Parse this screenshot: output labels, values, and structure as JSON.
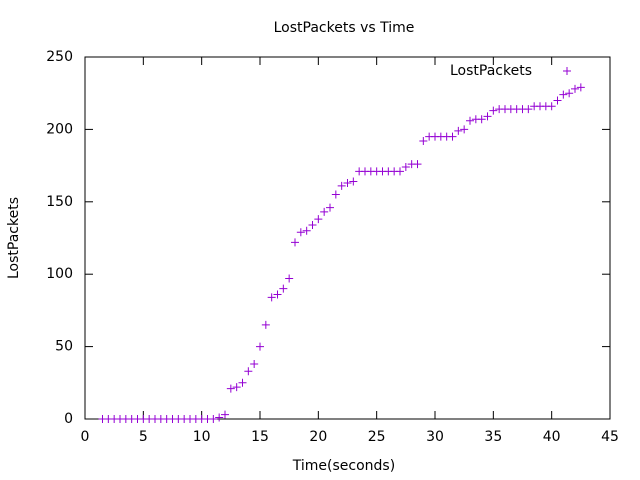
{
  "chart_data": {
    "type": "scatter",
    "title": "LostPackets vs Time",
    "x_label": "Time(seconds)",
    "y_label": "LostPackets",
    "x": [
      1.5,
      2,
      2.5,
      3,
      3.5,
      4,
      4.5,
      5,
      5.5,
      6,
      6.5,
      7,
      7.5,
      8,
      8.5,
      9,
      9.5,
      10,
      10.5,
      11,
      11.5,
      12,
      12.5,
      13,
      13.5,
      14,
      14.5,
      15,
      15.5,
      16,
      16.5,
      17,
      17.5,
      18,
      18.5,
      19,
      19.5,
      20,
      20.5,
      21,
      21.5,
      22,
      22.5,
      23,
      23.5,
      24,
      24.5,
      25,
      25.5,
      26,
      26.5,
      27,
      27.5,
      28,
      28.5,
      29,
      29.5,
      30,
      30.5,
      31,
      31.5,
      32,
      32.5,
      33,
      33.5,
      34,
      34.5,
      35,
      35.5,
      36,
      36.5,
      37,
      37.5,
      38,
      38.5,
      39,
      39.5,
      40,
      40.5,
      41,
      41.5,
      42,
      42.5
    ],
    "series": [
      {
        "name": "LostPackets",
        "color": "#9400d3",
        "values": [
          0,
          0,
          0,
          0,
          0,
          0,
          0,
          0,
          0,
          0,
          0,
          0,
          0,
          0,
          0,
          0,
          0,
          0,
          0,
          0,
          1,
          3,
          21,
          22,
          25,
          33,
          38,
          50,
          65,
          84,
          86,
          90,
          97,
          122,
          129,
          130,
          134,
          138,
          143,
          146,
          155,
          161,
          163,
          164,
          171,
          171,
          171,
          171,
          171,
          171,
          171,
          171,
          174,
          176,
          176,
          192,
          195,
          195,
          195,
          195,
          195,
          199,
          200,
          206,
          207,
          207,
          209,
          213,
          214,
          214,
          214,
          214,
          214,
          214,
          216,
          216,
          216,
          216,
          220,
          224,
          225,
          228,
          229
        ]
      }
    ],
    "xlim": [
      0,
      45
    ],
    "xticks": [
      0,
      5,
      10,
      15,
      20,
      25,
      30,
      35,
      40,
      45
    ],
    "ylim": [
      0,
      250
    ],
    "yticks": [
      0,
      50,
      100,
      150,
      200,
      250
    ],
    "legend": "top-right"
  }
}
